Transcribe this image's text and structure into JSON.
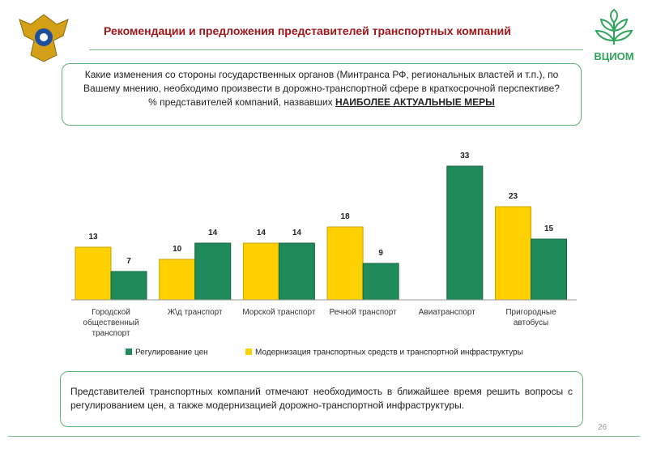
{
  "header": {
    "title": "Рекомендации и предложения представителей транспортных компаний",
    "logo": "ВЦИОМ"
  },
  "question": {
    "text": "Какие изменения со стороны государственных органов (Минтранса РФ, региональных властей и т.п.), по Вашему мнению, необходимо произвести в дорожно-транспортной сфере в краткосрочной перспективе?",
    "metric_prefix": "% представителей компаний, назвавших",
    "metric_emphasis": "НАИБОЛЕЕ АКТУАЛЬНЫЕ МЕРЫ"
  },
  "chart_data": {
    "type": "bar",
    "categories": [
      "Городской общественный транспорт",
      "Ж\\д транспорт",
      "Морской транспорт",
      "Речной транспорт",
      "Авиатранспорт",
      "Пригородные автобусы"
    ],
    "series": [
      {
        "name": "Модернизация транспортных средств и транспортной инфраструктуры",
        "color": "#ffd000",
        "values": [
          13,
          10,
          14,
          18,
          null,
          23
        ]
      },
      {
        "name": "Регулирование цен",
        "color": "#1f8b5b",
        "values": [
          7,
          14,
          14,
          9,
          33,
          15
        ]
      }
    ],
    "legend_order": [
      1,
      0
    ]
  },
  "conclusion": "Представителей транспортных компаний отмечают необходимость в ближайшее время решить вопросы с регулированием цен, а также модернизацией дорожно-транспортной инфраструктуры.",
  "page_number": "26"
}
